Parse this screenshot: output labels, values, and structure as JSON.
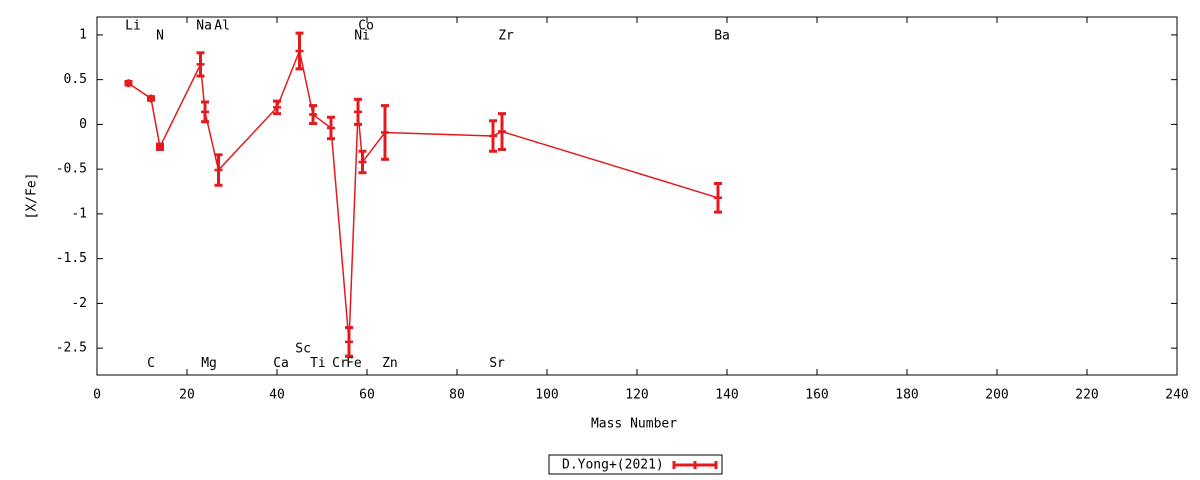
{
  "chart_data": {
    "type": "errorbar-line",
    "xlabel": "Mass Number",
    "ylabel": "[X/Fe]",
    "xlim": [
      0,
      240
    ],
    "ylim": [
      -2.8,
      1.2
    ],
    "xticks": [
      0,
      20,
      40,
      60,
      80,
      100,
      120,
      140,
      160,
      180,
      200,
      220,
      240
    ],
    "yticks": [
      1,
      0.5,
      0,
      -0.5,
      -1,
      -1.5,
      -2,
      -2.5
    ],
    "legend": "bottom",
    "series": [
      {
        "name": "D.Yong+(2021)",
        "color": "#e41a1c",
        "x": [
          7,
          12,
          14,
          23,
          24,
          27,
          40,
          45,
          48,
          52,
          56,
          58,
          59,
          64,
          88,
          90,
          138
        ],
        "values": [
          0.46,
          0.29,
          -0.25,
          0.67,
          0.14,
          -0.51,
          0.19,
          0.82,
          0.11,
          -0.04,
          -2.43,
          0.14,
          -0.42,
          -0.09,
          -0.13,
          -0.08,
          -0.82
        ],
        "errors": [
          0.02,
          0.02,
          0.03,
          0.13,
          0.11,
          0.17,
          0.07,
          0.2,
          0.1,
          0.12,
          0.16,
          0.14,
          0.12,
          0.3,
          0.17,
          0.2,
          0.16
        ]
      }
    ],
    "annotations": [
      {
        "text": "Li",
        "x": 8,
        "y": 1.1
      },
      {
        "text": "N",
        "x": 14,
        "y": 0.99
      },
      {
        "text": "Na",
        "x": 23.8,
        "y": 1.1
      },
      {
        "text": "Al",
        "x": 27.8,
        "y": 1.1
      },
      {
        "text": "Co",
        "x": 59.8,
        "y": 1.1
      },
      {
        "text": "Ni",
        "x": 58.9,
        "y": 0.99
      },
      {
        "text": "Zr",
        "x": 90.9,
        "y": 0.99
      },
      {
        "text": "Ba",
        "x": 138.9,
        "y": 0.99
      },
      {
        "text": "C",
        "x": 12,
        "y": -2.67
      },
      {
        "text": "Mg",
        "x": 24.9,
        "y": -2.67
      },
      {
        "text": "Ca",
        "x": 40.9,
        "y": -2.67
      },
      {
        "text": "Sc",
        "x": 45.8,
        "y": -2.51
      },
      {
        "text": "Ti",
        "x": 49.1,
        "y": -2.67
      },
      {
        "text": "Cr",
        "x": 54,
        "y": -2.67
      },
      {
        "text": "Fe",
        "x": 57.1,
        "y": -2.67
      },
      {
        "text": "Zn",
        "x": 65.1,
        "y": -2.67
      },
      {
        "text": "Sr",
        "x": 88.9,
        "y": -2.67
      }
    ]
  }
}
